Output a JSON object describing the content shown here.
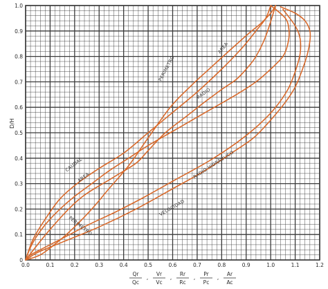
{
  "colors": {
    "paper": "#ffffff",
    "grid": "#3a3a3a",
    "curve": "#d86a2c",
    "text": "#2a2a2a"
  },
  "chart_data": {
    "type": "line",
    "title": "",
    "ylabel": "D/H",
    "xlabel_terms": [
      {
        "num": "Qr",
        "den": "Qc"
      },
      {
        "num": "Vr",
        "den": "Vc"
      },
      {
        "num": "Rr",
        "den": "Rc"
      },
      {
        "num": "Pr",
        "den": "Pc"
      },
      {
        "num": "Ar",
        "den": "Ac"
      }
    ],
    "xlim": [
      0,
      1.2
    ],
    "ylim": [
      0,
      1.0
    ],
    "xticks": [
      "0.0",
      "0.1",
      "0.2",
      "0.3",
      "0.4",
      "0.5",
      "0.6",
      "0.7",
      "0.8",
      "0.9",
      "1.0",
      "1.1",
      "1.2"
    ],
    "yticks": [
      "0",
      "0.1",
      "0.2",
      "0.3",
      "0.4",
      "0.5",
      "0.6",
      "0.7",
      "0.8",
      "0.9",
      "1.0"
    ],
    "grid": true,
    "series": [
      {
        "name": "CAUDAL",
        "x": [
          0,
          0.02,
          0.05,
          0.09,
          0.14,
          0.2,
          0.27,
          0.34,
          0.42,
          0.5,
          0.59,
          0.68,
          0.77,
          0.86,
          0.94,
          1.0,
          1.05,
          1.07,
          1.075,
          1.06,
          1.0
        ],
        "y": [
          0,
          0.05,
          0.1,
          0.15,
          0.2,
          0.25,
          0.3,
          0.35,
          0.4,
          0.45,
          0.5,
          0.55,
          0.6,
          0.65,
          0.7,
          0.75,
          0.8,
          0.85,
          0.9,
          0.95,
          1.0
        ]
      },
      {
        "name": "VELOCIDAD",
        "x": [
          0,
          0.05,
          0.15,
          0.3,
          0.45,
          0.6,
          0.73,
          0.84,
          0.93,
          1.0,
          1.06,
          1.1,
          1.13,
          1.15,
          1.16,
          1.16,
          1.14,
          1.1,
          1.04
        ],
        "y": [
          0,
          0.03,
          0.07,
          0.13,
          0.2,
          0.28,
          0.35,
          0.42,
          0.48,
          0.55,
          0.62,
          0.68,
          0.75,
          0.81,
          0.86,
          0.9,
          0.94,
          0.97,
          0.995
        ]
      },
      {
        "name": "RADIO HIDRAULICO",
        "x": [
          0,
          0.02,
          0.08,
          0.16,
          0.26,
          0.37,
          0.49,
          0.62,
          0.75,
          0.86,
          0.95,
          1.02,
          1.07,
          1.1,
          1.12,
          1.12,
          1.1,
          1.05
        ],
        "y": [
          0,
          0.02,
          0.05,
          0.09,
          0.14,
          0.19,
          0.25,
          0.32,
          0.39,
          0.46,
          0.53,
          0.6,
          0.67,
          0.74,
          0.81,
          0.87,
          0.92,
          0.985
        ]
      },
      {
        "name": "PERIMETRO",
        "x": [
          0,
          0.06,
          0.13,
          0.2,
          0.27,
          0.34,
          0.42,
          0.5,
          0.59,
          0.67,
          0.76,
          0.84,
          0.91,
          0.96,
          1.0,
          1.02
        ],
        "y": [
          0,
          0.02,
          0.07,
          0.13,
          0.2,
          0.28,
          0.37,
          0.48,
          0.6,
          0.68,
          0.76,
          0.83,
          0.89,
          0.93,
          0.97,
          1.0
        ]
      },
      {
        "name": "AREA",
        "x": [
          0,
          0.03,
          0.08,
          0.14,
          0.21,
          0.3,
          0.4,
          0.5,
          0.6,
          0.7,
          0.8,
          0.88,
          0.94,
          0.98,
          1.0
        ],
        "y": [
          0,
          0.08,
          0.16,
          0.24,
          0.3,
          0.36,
          0.42,
          0.5,
          0.58,
          0.66,
          0.75,
          0.83,
          0.9,
          0.95,
          1.0
        ]
      },
      {
        "name": "RADIO",
        "x": [
          0,
          0.1,
          0.22,
          0.35,
          0.45,
          0.5,
          0.57,
          0.65,
          0.73,
          0.8,
          0.86,
          0.9,
          0.94,
          0.98,
          1.02
        ],
        "y": [
          0,
          0.12,
          0.24,
          0.32,
          0.38,
          0.43,
          0.5,
          0.56,
          0.62,
          0.67,
          0.71,
          0.75,
          0.8,
          0.88,
          1.0
        ]
      }
    ],
    "curve_labels": [
      {
        "text": "CAUDAL",
        "x": 0.2,
        "y": 0.37,
        "angle": -38
      },
      {
        "text": "AREA",
        "x": 0.24,
        "y": 0.32,
        "angle": -38
      },
      {
        "text": "PERIMETRO",
        "x": 0.58,
        "y": 0.75,
        "angle": -62
      },
      {
        "text": "AREA",
        "x": 0.81,
        "y": 0.83,
        "angle": -52
      },
      {
        "text": "RADIO",
        "x": 0.73,
        "y": 0.65,
        "angle": -36
      },
      {
        "text": "RADIO HIDRAULICO",
        "x": 0.77,
        "y": 0.37,
        "angle": -33
      },
      {
        "text": "VELOCIDAD",
        "x": 0.6,
        "y": 0.2,
        "angle": -30
      },
      {
        "text": "PERIMETRO",
        "x": 0.22,
        "y": 0.13,
        "angle": 38
      }
    ]
  }
}
